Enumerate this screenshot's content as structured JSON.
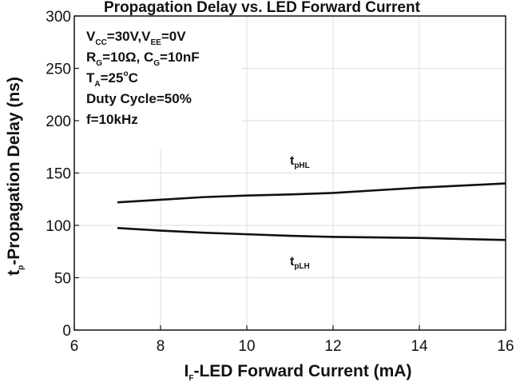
{
  "chart_data": {
    "type": "line",
    "title": "Propagation Delay vs. LED Forward Current",
    "xlabel": {
      "prefix": "I",
      "sub": "F",
      "rest": "-LED Forward Current (mA)"
    },
    "ylabel": {
      "prefix": "t",
      "sub": "p",
      "rest": "-Propagation Delay (ns)"
    },
    "xlim": [
      6,
      16
    ],
    "ylim": [
      0,
      300
    ],
    "xticks": [
      "6",
      "8",
      "10",
      "12",
      "14",
      "16"
    ],
    "yticks": [
      "0",
      "50",
      "100",
      "150",
      "200",
      "250",
      "300"
    ],
    "grid": true,
    "conditions": [
      {
        "id": "vcc",
        "parts": [
          [
            "V",
            ""
          ],
          [
            "CC",
            "sub"
          ],
          [
            "=30V,V",
            ""
          ],
          [
            "EE",
            "sub"
          ],
          [
            "=0V",
            ""
          ]
        ]
      },
      {
        "id": "rg",
        "parts": [
          [
            "R",
            ""
          ],
          [
            "G",
            "sub"
          ],
          [
            "=10Ω, C",
            ""
          ],
          [
            "G",
            "sub"
          ],
          [
            "=10nF",
            ""
          ]
        ]
      },
      {
        "id": "ta",
        "parts": [
          [
            "T",
            ""
          ],
          [
            "A",
            "sub"
          ],
          [
            "=25",
            ""
          ],
          [
            "o",
            "sup"
          ],
          [
            "C",
            ""
          ]
        ]
      },
      {
        "id": "duty",
        "parts": [
          [
            "Duty Cycle=50%",
            ""
          ]
        ]
      },
      {
        "id": "freq",
        "parts": [
          [
            "f=10kHz",
            ""
          ]
        ]
      }
    ],
    "series": [
      {
        "name": "tpHL",
        "label_main": "t",
        "label_sub": "pHL",
        "label_at": [
          11.0,
          158
        ],
        "x": [
          7,
          8,
          9,
          10,
          11,
          12,
          13,
          14,
          15,
          16
        ],
        "y": [
          122,
          124.5,
          127,
          128.5,
          129.5,
          131,
          133.5,
          136,
          138,
          140
        ]
      },
      {
        "name": "tpLH",
        "label_main": "t",
        "label_sub": "pLH",
        "label_at": [
          11.0,
          62
        ],
        "x": [
          7,
          8,
          9,
          10,
          11,
          12,
          13,
          14,
          15,
          16
        ],
        "y": [
          97.5,
          95,
          93,
          91.5,
          90,
          89,
          88.5,
          88,
          87,
          86
        ]
      }
    ]
  }
}
